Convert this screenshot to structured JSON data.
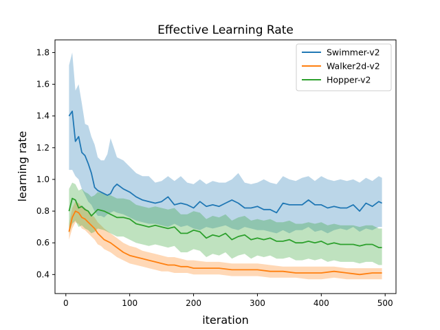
{
  "chart_data": {
    "type": "line",
    "title": "Effective Learning Rate",
    "xlabel": "iteration",
    "ylabel": "learning rate",
    "xlim": [
      -17,
      517
    ],
    "ylim": [
      0.28,
      1.88
    ],
    "xticks": [
      0,
      100,
      200,
      300,
      400,
      500
    ],
    "yticks": [
      0.4,
      0.6,
      0.8,
      1.0,
      1.2,
      1.4,
      1.6,
      1.8
    ],
    "xtick_labels": [
      "0",
      "100",
      "200",
      "300",
      "400",
      "500"
    ],
    "ytick_labels": [
      "0.4",
      "0.6",
      "0.8",
      "1.0",
      "1.2",
      "1.4",
      "1.6",
      "1.8"
    ],
    "grid": false,
    "legend_position": "top-right",
    "series": [
      {
        "name": "Swimmer-v2",
        "color": "#1f77b4",
        "band_color": "#1f77b4",
        "x": [
          5,
          10,
          15,
          20,
          25,
          30,
          35,
          40,
          45,
          50,
          55,
          60,
          65,
          70,
          75,
          80,
          90,
          100,
          110,
          120,
          130,
          140,
          150,
          160,
          170,
          180,
          190,
          200,
          210,
          220,
          230,
          240,
          250,
          260,
          270,
          280,
          290,
          300,
          310,
          320,
          330,
          340,
          350,
          360,
          370,
          380,
          390,
          400,
          410,
          420,
          430,
          440,
          450,
          460,
          470,
          480,
          490,
          495
        ],
        "mean": [
          1.4,
          1.43,
          1.24,
          1.27,
          1.17,
          1.15,
          1.1,
          1.04,
          0.95,
          0.93,
          0.92,
          0.91,
          0.9,
          0.91,
          0.95,
          0.97,
          0.94,
          0.92,
          0.89,
          0.87,
          0.86,
          0.85,
          0.86,
          0.89,
          0.84,
          0.85,
          0.84,
          0.82,
          0.86,
          0.83,
          0.84,
          0.83,
          0.85,
          0.87,
          0.85,
          0.82,
          0.82,
          0.83,
          0.81,
          0.81,
          0.79,
          0.85,
          0.84,
          0.84,
          0.84,
          0.87,
          0.84,
          0.84,
          0.82,
          0.83,
          0.82,
          0.82,
          0.84,
          0.8,
          0.85,
          0.83,
          0.86,
          0.85
        ],
        "lower": [
          1.06,
          1.06,
          1.02,
          1.0,
          0.94,
          0.9,
          0.86,
          0.84,
          0.8,
          0.77,
          0.77,
          0.76,
          0.78,
          0.79,
          0.8,
          0.79,
          0.78,
          0.76,
          0.74,
          0.73,
          0.72,
          0.72,
          0.71,
          0.7,
          0.72,
          0.7,
          0.71,
          0.69,
          0.68,
          0.7,
          0.69,
          0.7,
          0.71,
          0.69,
          0.68,
          0.7,
          0.69,
          0.68,
          0.68,
          0.67,
          0.66,
          0.68,
          0.66,
          0.68,
          0.68,
          0.7,
          0.67,
          0.68,
          0.66,
          0.68,
          0.69,
          0.68,
          0.7,
          0.67,
          0.69,
          0.68,
          0.7,
          0.7
        ],
        "upper": [
          1.72,
          1.8,
          1.56,
          1.6,
          1.48,
          1.35,
          1.34,
          1.27,
          1.22,
          1.14,
          1.12,
          1.12,
          1.16,
          1.26,
          1.2,
          1.14,
          1.12,
          1.08,
          1.04,
          1.02,
          1.02,
          0.98,
          0.99,
          1.02,
          0.99,
          1.02,
          0.98,
          0.97,
          1.0,
          0.97,
          0.99,
          0.98,
          0.98,
          1.0,
          1.04,
          0.98,
          0.97,
          0.98,
          1.0,
          0.98,
          0.97,
          1.02,
          1.0,
          0.99,
          1.01,
          1.02,
          0.99,
          1.02,
          1.0,
          0.99,
          1.0,
          0.99,
          1.0,
          0.98,
          1.01,
          0.99,
          1.02,
          1.01
        ]
      },
      {
        "name": "Walker2d-v2",
        "color": "#ff7f0e",
        "band_color": "#ff7f0e",
        "x": [
          5,
          10,
          15,
          20,
          25,
          30,
          35,
          40,
          45,
          50,
          55,
          60,
          70,
          80,
          90,
          100,
          110,
          120,
          130,
          140,
          150,
          160,
          170,
          180,
          190,
          200,
          220,
          240,
          260,
          280,
          300,
          320,
          340,
          360,
          380,
          400,
          420,
          440,
          460,
          480,
          495
        ],
        "mean": [
          0.67,
          0.76,
          0.8,
          0.79,
          0.76,
          0.75,
          0.73,
          0.71,
          0.69,
          0.66,
          0.64,
          0.62,
          0.6,
          0.57,
          0.54,
          0.52,
          0.51,
          0.5,
          0.49,
          0.48,
          0.47,
          0.46,
          0.46,
          0.45,
          0.45,
          0.44,
          0.44,
          0.44,
          0.43,
          0.43,
          0.43,
          0.42,
          0.42,
          0.41,
          0.41,
          0.41,
          0.42,
          0.41,
          0.4,
          0.41,
          0.41
        ],
        "lower": [
          0.62,
          0.69,
          0.73,
          0.72,
          0.69,
          0.68,
          0.66,
          0.64,
          0.62,
          0.59,
          0.58,
          0.56,
          0.54,
          0.51,
          0.49,
          0.47,
          0.46,
          0.45,
          0.44,
          0.43,
          0.42,
          0.42,
          0.41,
          0.41,
          0.41,
          0.4,
          0.4,
          0.4,
          0.39,
          0.39,
          0.39,
          0.38,
          0.38,
          0.38,
          0.37,
          0.37,
          0.38,
          0.37,
          0.37,
          0.37,
          0.37
        ],
        "upper": [
          0.72,
          0.82,
          0.86,
          0.85,
          0.83,
          0.82,
          0.8,
          0.78,
          0.76,
          0.73,
          0.71,
          0.69,
          0.66,
          0.63,
          0.6,
          0.58,
          0.57,
          0.55,
          0.54,
          0.53,
          0.52,
          0.51,
          0.51,
          0.5,
          0.49,
          0.49,
          0.48,
          0.48,
          0.47,
          0.47,
          0.47,
          0.46,
          0.45,
          0.45,
          0.45,
          0.45,
          0.45,
          0.44,
          0.44,
          0.44,
          0.44
        ]
      },
      {
        "name": "Hopper-v2",
        "color": "#2ca02c",
        "band_color": "#2ca02c",
        "x": [
          5,
          10,
          15,
          20,
          25,
          30,
          35,
          40,
          45,
          50,
          60,
          70,
          80,
          90,
          100,
          110,
          120,
          130,
          140,
          150,
          160,
          170,
          180,
          190,
          200,
          210,
          220,
          230,
          240,
          250,
          260,
          270,
          280,
          290,
          300,
          310,
          320,
          330,
          340,
          350,
          360,
          370,
          380,
          390,
          400,
          410,
          420,
          430,
          440,
          450,
          460,
          470,
          480,
          490,
          495
        ],
        "mean": [
          0.8,
          0.88,
          0.87,
          0.82,
          0.83,
          0.81,
          0.8,
          0.77,
          0.79,
          0.81,
          0.8,
          0.78,
          0.76,
          0.76,
          0.75,
          0.72,
          0.71,
          0.7,
          0.71,
          0.7,
          0.69,
          0.7,
          0.66,
          0.66,
          0.68,
          0.67,
          0.63,
          0.65,
          0.64,
          0.66,
          0.62,
          0.64,
          0.65,
          0.62,
          0.63,
          0.62,
          0.63,
          0.61,
          0.61,
          0.62,
          0.6,
          0.6,
          0.61,
          0.6,
          0.61,
          0.59,
          0.6,
          0.59,
          0.59,
          0.59,
          0.58,
          0.59,
          0.59,
          0.57,
          0.57
        ],
        "lower": [
          0.66,
          0.72,
          0.74,
          0.7,
          0.71,
          0.69,
          0.68,
          0.66,
          0.67,
          0.69,
          0.68,
          0.66,
          0.64,
          0.64,
          0.62,
          0.6,
          0.59,
          0.58,
          0.59,
          0.58,
          0.57,
          0.58,
          0.54,
          0.54,
          0.56,
          0.55,
          0.51,
          0.53,
          0.52,
          0.54,
          0.5,
          0.52,
          0.53,
          0.5,
          0.52,
          0.51,
          0.52,
          0.5,
          0.5,
          0.51,
          0.49,
          0.49,
          0.5,
          0.49,
          0.5,
          0.48,
          0.49,
          0.48,
          0.48,
          0.48,
          0.47,
          0.48,
          0.48,
          0.46,
          0.46
        ],
        "upper": [
          0.94,
          0.98,
          0.97,
          0.93,
          0.94,
          0.92,
          0.91,
          0.89,
          0.9,
          0.92,
          0.91,
          0.9,
          0.88,
          0.88,
          0.87,
          0.84,
          0.83,
          0.82,
          0.83,
          0.82,
          0.81,
          0.82,
          0.78,
          0.78,
          0.8,
          0.79,
          0.75,
          0.77,
          0.76,
          0.78,
          0.74,
          0.76,
          0.77,
          0.74,
          0.75,
          0.74,
          0.75,
          0.73,
          0.73,
          0.74,
          0.72,
          0.72,
          0.73,
          0.72,
          0.73,
          0.71,
          0.72,
          0.71,
          0.71,
          0.71,
          0.7,
          0.71,
          0.71,
          0.69,
          0.69
        ]
      }
    ]
  }
}
